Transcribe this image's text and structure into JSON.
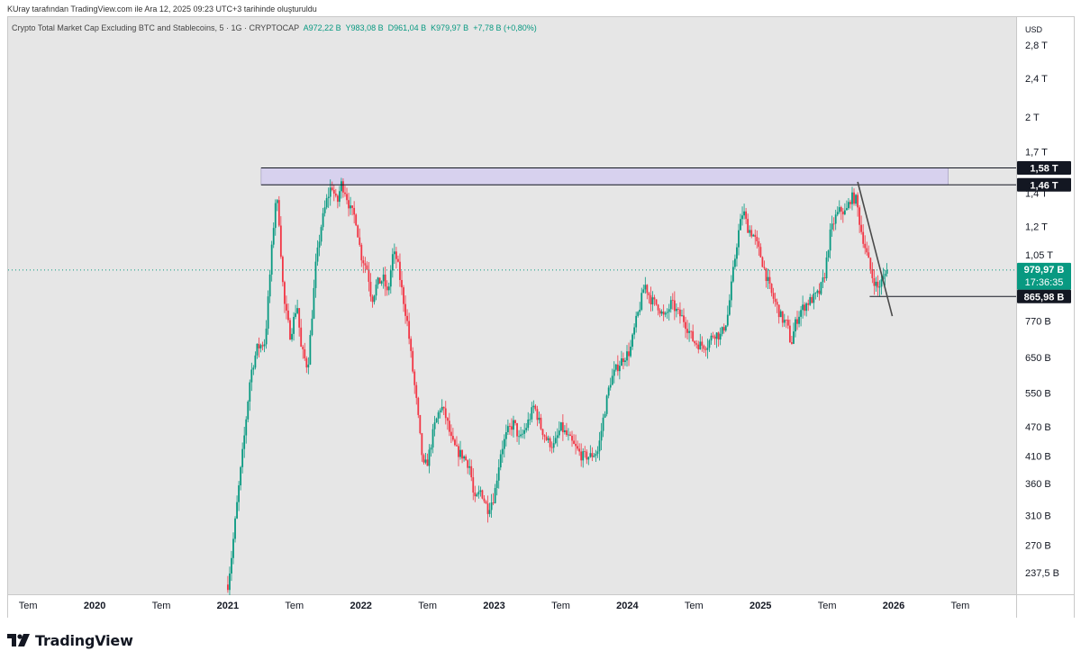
{
  "attribution": "KUray tarafından TradingView.com ile Ara 12, 2025 09:23 UTC+3 tarihinde oluşturuldu",
  "legend": {
    "symbol": "Crypto Total Market Cap Excluding BTC and Stablecoins, 5 · 1G · CRYPTOCAP",
    "open": "A972,22 B",
    "high": "Y983,08 B",
    "low": "D961,04 B",
    "close": "K979,97 B",
    "change": "+7,78 B (+0,80%)"
  },
  "brand": {
    "name": "TradingView"
  },
  "colors": {
    "up": "#089981",
    "down": "#f23645",
    "zone": "#d7d1ee",
    "background": "#e6e6e6",
    "axis_bg": "#ffffff"
  },
  "chart_data": {
    "type": "candlestick",
    "scale": "log",
    "currency": "USD",
    "ylim": [
      215,
      3200
    ],
    "x_range": [
      2019.35,
      2026.92
    ],
    "y_ticks": [
      {
        "value": 2800,
        "label": "2,8 T"
      },
      {
        "value": 2400,
        "label": "2,4 T"
      },
      {
        "value": 2000,
        "label": "2 T"
      },
      {
        "value": 1700,
        "label": "1,7 T"
      },
      {
        "value": 1400,
        "label": "1,4 T"
      },
      {
        "value": 1200,
        "label": "1,2 T"
      },
      {
        "value": 1050,
        "label": "1,05 T"
      },
      {
        "value": 770,
        "label": "770 B"
      },
      {
        "value": 650,
        "label": "650 B"
      },
      {
        "value": 550,
        "label": "550 B"
      },
      {
        "value": 470,
        "label": "470 B"
      },
      {
        "value": 410,
        "label": "410 B"
      },
      {
        "value": 360,
        "label": "360 B"
      },
      {
        "value": 310,
        "label": "310 B"
      },
      {
        "value": 270,
        "label": "270 B"
      },
      {
        "value": 237.5,
        "label": "237,5 B"
      }
    ],
    "x_ticks": [
      {
        "t": 2019.5,
        "label": "Tem",
        "bold": false
      },
      {
        "t": 2020.0,
        "label": "2020",
        "bold": true
      },
      {
        "t": 2020.5,
        "label": "Tem",
        "bold": false
      },
      {
        "t": 2021.0,
        "label": "2021",
        "bold": true
      },
      {
        "t": 2021.5,
        "label": "Tem",
        "bold": false
      },
      {
        "t": 2022.0,
        "label": "2022",
        "bold": true
      },
      {
        "t": 2022.5,
        "label": "Tem",
        "bold": false
      },
      {
        "t": 2023.0,
        "label": "2023",
        "bold": true
      },
      {
        "t": 2023.5,
        "label": "Tem",
        "bold": false
      },
      {
        "t": 2024.0,
        "label": "2024",
        "bold": true
      },
      {
        "t": 2024.5,
        "label": "Tem",
        "bold": false
      },
      {
        "t": 2025.0,
        "label": "2025",
        "bold": true
      },
      {
        "t": 2025.5,
        "label": "Tem",
        "bold": false
      },
      {
        "t": 2026.0,
        "label": "2026",
        "bold": true
      },
      {
        "t": 2026.5,
        "label": "Tem",
        "bold": false
      }
    ],
    "price_labels": [
      {
        "value": 1580,
        "label": "1,58 T",
        "style": "dark"
      },
      {
        "value": 1460,
        "label": "1,46 T",
        "style": "dark"
      },
      {
        "value": 979.97,
        "label": "979,97 B",
        "sub": "17:36:35",
        "style": "green"
      },
      {
        "value": 865.98,
        "label": "865,98 B",
        "style": "dark"
      }
    ],
    "zone": {
      "t1": 2021.25,
      "t2": 2026.41,
      "y1": 1460,
      "y2": 1580
    },
    "support_line": {
      "t1": 2025.82,
      "t2": 2026.92,
      "value": 865.98
    },
    "trendline": {
      "t1": 2025.73,
      "y1": 1480,
      "t2": 2025.99,
      "y2": 790
    },
    "last_price": 979.97,
    "anchors": [
      [
        2021.0,
        225
      ],
      [
        2021.03,
        260
      ],
      [
        2021.07,
        330
      ],
      [
        2021.12,
        440
      ],
      [
        2021.17,
        600
      ],
      [
        2021.22,
        680
      ],
      [
        2021.28,
        700
      ],
      [
        2021.33,
        1080
      ],
      [
        2021.36,
        1380
      ],
      [
        2021.38,
        1300
      ],
      [
        2021.42,
        850
      ],
      [
        2021.47,
        720
      ],
      [
        2021.52,
        840
      ],
      [
        2021.55,
        680
      ],
      [
        2021.6,
        620
      ],
      [
        2021.63,
        780
      ],
      [
        2021.66,
        1000
      ],
      [
        2021.7,
        1200
      ],
      [
        2021.74,
        1350
      ],
      [
        2021.78,
        1460
      ],
      [
        2021.82,
        1330
      ],
      [
        2021.85,
        1470
      ],
      [
        2021.88,
        1420
      ],
      [
        2021.92,
        1300
      ],
      [
        2021.96,
        1250
      ],
      [
        2022.0,
        1050
      ],
      [
        2022.05,
        980
      ],
      [
        2022.08,
        850
      ],
      [
        2022.12,
        920
      ],
      [
        2022.17,
        940
      ],
      [
        2022.2,
        870
      ],
      [
        2022.24,
        1060
      ],
      [
        2022.27,
        1030
      ],
      [
        2022.31,
        880
      ],
      [
        2022.35,
        760
      ],
      [
        2022.38,
        640
      ],
      [
        2022.42,
        520
      ],
      [
        2022.45,
        430
      ],
      [
        2022.47,
        390
      ],
      [
        2022.5,
        400
      ],
      [
        2022.55,
        470
      ],
      [
        2022.6,
        520
      ],
      [
        2022.64,
        490
      ],
      [
        2022.68,
        440
      ],
      [
        2022.72,
        420
      ],
      [
        2022.77,
        410
      ],
      [
        2022.82,
        390
      ],
      [
        2022.85,
        330
      ],
      [
        2022.9,
        350
      ],
      [
        2022.95,
        320
      ],
      [
        2023.0,
        340
      ],
      [
        2023.05,
        420
      ],
      [
        2023.1,
        460
      ],
      [
        2023.15,
        480
      ],
      [
        2023.19,
        440
      ],
      [
        2023.24,
        470
      ],
      [
        2023.3,
        520
      ],
      [
        2023.35,
        470
      ],
      [
        2023.4,
        440
      ],
      [
        2023.45,
        430
      ],
      [
        2023.5,
        470
      ],
      [
        2023.55,
        450
      ],
      [
        2023.6,
        430
      ],
      [
        2023.66,
        410
      ],
      [
        2023.72,
        410
      ],
      [
        2023.78,
        420
      ],
      [
        2023.82,
        490
      ],
      [
        2023.87,
        580
      ],
      [
        2023.92,
        620
      ],
      [
        2023.97,
        650
      ],
      [
        2024.02,
        670
      ],
      [
        2024.06,
        760
      ],
      [
        2024.1,
        840
      ],
      [
        2024.13,
        920
      ],
      [
        2024.18,
        850
      ],
      [
        2024.23,
        830
      ],
      [
        2024.28,
        780
      ],
      [
        2024.33,
        840
      ],
      [
        2024.38,
        800
      ],
      [
        2024.42,
        780
      ],
      [
        2024.47,
        730
      ],
      [
        2024.5,
        700
      ],
      [
        2024.55,
        690
      ],
      [
        2024.6,
        690
      ],
      [
        2024.65,
        730
      ],
      [
        2024.7,
        720
      ],
      [
        2024.75,
        780
      ],
      [
        2024.79,
        950
      ],
      [
        2024.83,
        1150
      ],
      [
        2024.87,
        1300
      ],
      [
        2024.9,
        1200
      ],
      [
        2024.95,
        1150
      ],
      [
        2025.0,
        1050
      ],
      [
        2025.04,
        960
      ],
      [
        2025.08,
        880
      ],
      [
        2025.12,
        830
      ],
      [
        2025.16,
        780
      ],
      [
        2025.2,
        760
      ],
      [
        2025.23,
        690
      ],
      [
        2025.26,
        760
      ],
      [
        2025.3,
        810
      ],
      [
        2025.35,
        840
      ],
      [
        2025.4,
        860
      ],
      [
        2025.44,
        880
      ],
      [
        2025.48,
        950
      ],
      [
        2025.52,
        1150
      ],
      [
        2025.56,
        1250
      ],
      [
        2025.6,
        1300
      ],
      [
        2025.64,
        1280
      ],
      [
        2025.68,
        1380
      ],
      [
        2025.72,
        1360
      ],
      [
        2025.75,
        1200
      ],
      [
        2025.8,
        1050
      ],
      [
        2025.84,
        950
      ],
      [
        2025.88,
        900
      ],
      [
        2025.92,
        940
      ],
      [
        2025.95,
        979.97
      ]
    ]
  }
}
